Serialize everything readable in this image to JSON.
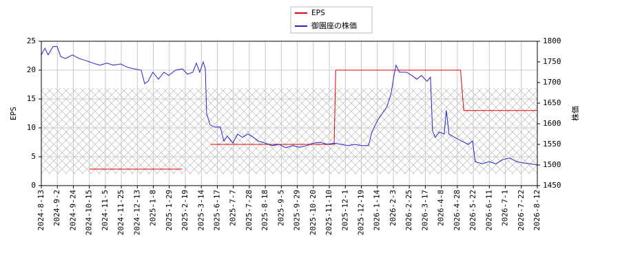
{
  "chart_data": {
    "type": "line",
    "xlim": [
      0,
      31
    ],
    "xticks": [
      {
        "value": 0,
        "label": "2024-8-13"
      },
      {
        "value": 1,
        "label": "2024-9-2"
      },
      {
        "value": 2,
        "label": "2024-9-24"
      },
      {
        "value": 3,
        "label": "2024-10-15"
      },
      {
        "value": 4,
        "label": "2024-11-5"
      },
      {
        "value": 5,
        "label": "2024-11-25"
      },
      {
        "value": 6,
        "label": "2024-12-13"
      },
      {
        "value": 7,
        "label": "2025-1-8"
      },
      {
        "value": 8,
        "label": "2025-1-29"
      },
      {
        "value": 9,
        "label": "2025-2-19"
      },
      {
        "value": 10,
        "label": "2025-3-14"
      },
      {
        "value": 11,
        "label": "2025-6-17"
      },
      {
        "value": 12,
        "label": "2025-7-7"
      },
      {
        "value": 13,
        "label": "2025-7-28"
      },
      {
        "value": 14,
        "label": "2025-8-18"
      },
      {
        "value": 15,
        "label": "2025-9-5"
      },
      {
        "value": 16,
        "label": "2025-9-29"
      },
      {
        "value": 17,
        "label": "2025-10-20"
      },
      {
        "value": 18,
        "label": "2025-11-10"
      },
      {
        "value": 19,
        "label": "2025-12-1"
      },
      {
        "value": 20,
        "label": "2025-12-19"
      },
      {
        "value": 21,
        "label": "2026-1-14"
      },
      {
        "value": 22,
        "label": "2026-2-3"
      },
      {
        "value": 23,
        "label": "2026-2-25"
      },
      {
        "value": 24,
        "label": "2026-3-17"
      },
      {
        "value": 25,
        "label": "2026-4-8"
      },
      {
        "value": 26,
        "label": "2026-4-28"
      },
      {
        "value": 27,
        "label": "2026-5-22"
      },
      {
        "value": 28,
        "label": "2026-6-11"
      },
      {
        "value": 29,
        "label": "2026-7-1"
      },
      {
        "value": 30,
        "label": "2026-7-22"
      },
      {
        "value": 31,
        "label": "2026-8-12"
      }
    ],
    "ylabel": "EPS",
    "ylim": [
      0,
      25
    ],
    "yticks": [
      0,
      5,
      10,
      15,
      20,
      25
    ],
    "y2label": "株価",
    "y2lim": [
      1450,
      1800
    ],
    "y2ticks": [
      1450,
      1500,
      1550,
      1600,
      1650,
      1700,
      1750,
      1800
    ],
    "grid": true,
    "legend": "top",
    "series": [
      {
        "name": "EPS",
        "color": "#dd0000",
        "x": [
          3.0,
          8.8,
          9.7,
          10.6,
          18.3,
          18.4,
          26.2,
          26.4,
          31.0
        ],
        "values": [
          2.85,
          2.85,
          null,
          7.15,
          7.15,
          20,
          20,
          13,
          13
        ]
      },
      {
        "name": "御園座の株価",
        "color": "#2222cc",
        "axis": "y2",
        "x": [
          0,
          0.22,
          0.43,
          0.73,
          0.99,
          1.21,
          1.51,
          1.94,
          2.37,
          2.8,
          3.23,
          3.66,
          4.09,
          4.52,
          4.95,
          5.38,
          5.81,
          6.24,
          6.46,
          6.67,
          6.97,
          7.32,
          7.66,
          7.96,
          8.39,
          8.83,
          9.13,
          9.47,
          9.69,
          9.9,
          10.12,
          10.25,
          10.33,
          10.55,
          10.85,
          11.19,
          11.41,
          11.62,
          11.97,
          12.27,
          12.57,
          12.91,
          13.26,
          13.56,
          13.99,
          14.42,
          14.85,
          15.28,
          15.71,
          16.14,
          16.57,
          17.0,
          17.43,
          17.86,
          18.3,
          18.73,
          19.16,
          19.59,
          20.02,
          20.45,
          20.66,
          21.01,
          21.31,
          21.61,
          21.87,
          22.04,
          22.17,
          22.38,
          22.82,
          23.16,
          23.46,
          23.76,
          24.11,
          24.32,
          24.45,
          24.62,
          24.88,
          25.18,
          25.31,
          25.48,
          25.83,
          26.26,
          26.69,
          26.95,
          27.12,
          27.55,
          27.98,
          28.41,
          28.84,
          29.27,
          29.7,
          30.13,
          30.57,
          31
        ],
        "values": [
          1767,
          1783,
          1767,
          1787,
          1787,
          1763,
          1758,
          1767,
          1758,
          1753,
          1747,
          1742,
          1747,
          1742,
          1745,
          1737,
          1733,
          1730,
          1697,
          1703,
          1725,
          1708,
          1725,
          1717,
          1730,
          1733,
          1720,
          1725,
          1747,
          1725,
          1750,
          1733,
          1625,
          1597,
          1592,
          1592,
          1558,
          1570,
          1553,
          1575,
          1567,
          1575,
          1567,
          1558,
          1553,
          1547,
          1550,
          1542,
          1547,
          1543,
          1547,
          1553,
          1555,
          1550,
          1553,
          1550,
          1547,
          1550,
          1547,
          1547,
          1580,
          1608,
          1625,
          1642,
          1675,
          1717,
          1742,
          1725,
          1725,
          1717,
          1708,
          1717,
          1703,
          1713,
          1583,
          1567,
          1580,
          1575,
          1633,
          1575,
          1567,
          1558,
          1550,
          1558,
          1508,
          1503,
          1508,
          1503,
          1513,
          1517,
          1508,
          1505,
          1503,
          1500
        ]
      }
    ]
  }
}
